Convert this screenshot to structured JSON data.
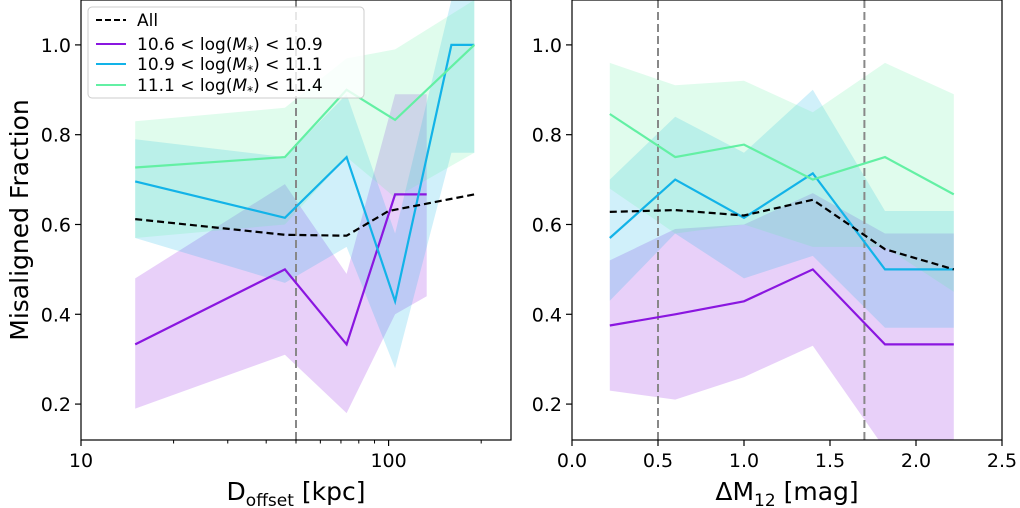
{
  "colors": {
    "all": "#000000",
    "purple": "#8a16e0",
    "blue": "#12b3e8",
    "green": "#63f0a4",
    "vline": "#888888"
  },
  "legend": {
    "location": "top-left of left panel",
    "entries": [
      {
        "label": "All",
        "style": "dashed",
        "color": "#000000"
      },
      {
        "label": "10.6 < log(M*) < 10.9",
        "style": "solid",
        "color": "#8a16e0"
      },
      {
        "label": "10.9 < log(M*) < 11.1",
        "style": "solid",
        "color": "#12b3e8"
      },
      {
        "label": "11.1 < log(M*) < 11.4",
        "style": "solid",
        "color": "#63f0a4"
      }
    ]
  },
  "chart_data": [
    {
      "type": "line",
      "panel": "left",
      "xscale": "log",
      "xlim": [
        10,
        250
      ],
      "ylim": [
        0.12,
        1.1
      ],
      "xlabel": "D_offset [kpc]",
      "ylabel": "Misaligned Fraction",
      "xticks": [
        10,
        100
      ],
      "xtick_labels": [
        "10",
        "100"
      ],
      "yticks": [
        0.2,
        0.4,
        0.6,
        0.8,
        1.0
      ],
      "ytick_labels": [
        "0.2",
        "0.4",
        "0.6",
        "0.8",
        "1.0"
      ],
      "vlines": [
        50
      ],
      "series": [
        {
          "name": "10.6 < log(M*) < 10.9",
          "color": "#8a16e0",
          "dash": false,
          "x": [
            15,
            46,
            73,
            105,
            133
          ],
          "y": [
            0.333,
            0.5,
            0.333,
            0.667,
            0.667
          ],
          "band_low": [
            0.19,
            0.31,
            0.18,
            0.4,
            0.44
          ],
          "band_high": [
            0.48,
            0.69,
            0.49,
            0.89,
            0.89
          ]
        },
        {
          "name": "10.9 < log(M*) < 11.1",
          "color": "#12b3e8",
          "dash": false,
          "x": [
            15,
            46,
            73,
            105,
            160,
            190
          ],
          "y": [
            0.696,
            0.615,
            0.75,
            0.429,
            1.0,
            1.0
          ],
          "band_low": [
            0.57,
            0.47,
            0.55,
            0.28,
            0.76,
            0.76
          ],
          "band_high": [
            0.79,
            0.75,
            0.89,
            0.58,
            1.1,
            1.1
          ]
        },
        {
          "name": "11.1 < log(M*) < 11.4",
          "color": "#63f0a4",
          "dash": false,
          "x": [
            15,
            46,
            73,
            105,
            190
          ],
          "y": [
            0.727,
            0.75,
            0.9,
            0.833,
            1.0
          ],
          "band_low": [
            0.57,
            0.6,
            0.75,
            0.66,
            0.76
          ],
          "band_high": [
            0.83,
            0.86,
            0.97,
            0.99,
            1.1
          ]
        },
        {
          "name": "All",
          "color": "#000000",
          "dash": true,
          "x": [
            15,
            46,
            73,
            100,
            190
          ],
          "y": [
            0.612,
            0.577,
            0.575,
            0.63,
            0.667
          ]
        }
      ]
    },
    {
      "type": "line",
      "panel": "right",
      "xscale": "linear",
      "xlim": [
        0.0,
        2.5
      ],
      "ylim": [
        0.12,
        1.1
      ],
      "xlabel": "ΔM_12 [mag]",
      "ylabel": "",
      "xticks": [
        0.0,
        0.5,
        1.0,
        1.5,
        2.0,
        2.5
      ],
      "xtick_labels": [
        "0.0",
        "0.5",
        "1.0",
        "1.5",
        "2.0",
        "2.5"
      ],
      "yticks": [
        0.2,
        0.4,
        0.6,
        0.8,
        1.0
      ],
      "ytick_labels": [
        "0.2",
        "0.4",
        "0.6",
        "0.8",
        "1.0"
      ],
      "vlines": [
        0.5,
        1.7
      ],
      "series": [
        {
          "name": "10.6 < log(M*) < 10.9",
          "color": "#8a16e0",
          "dash": false,
          "x": [
            0.22,
            0.6,
            1.0,
            1.4,
            1.82,
            2.22
          ],
          "y": [
            0.375,
            0.4,
            0.429,
            0.5,
            0.333,
            0.333
          ],
          "band_low": [
            0.23,
            0.21,
            0.26,
            0.33,
            0.1,
            0.1
          ],
          "band_high": [
            0.52,
            0.59,
            0.6,
            0.67,
            0.58,
            0.58
          ]
        },
        {
          "name": "10.9 < log(M*) < 11.1",
          "color": "#12b3e8",
          "dash": false,
          "x": [
            0.22,
            0.6,
            1.0,
            1.4,
            1.82,
            2.22
          ],
          "y": [
            0.57,
            0.7,
            0.615,
            0.714,
            0.5,
            0.5
          ],
          "band_low": [
            0.43,
            0.58,
            0.48,
            0.53,
            0.37,
            0.37
          ],
          "band_high": [
            0.7,
            0.84,
            0.76,
            0.9,
            0.63,
            0.63
          ]
        },
        {
          "name": "11.1 < log(M*) < 11.4",
          "color": "#63f0a4",
          "dash": false,
          "x": [
            0.22,
            0.6,
            1.0,
            1.4,
            1.82,
            2.22
          ],
          "y": [
            0.846,
            0.75,
            0.778,
            0.7,
            0.75,
            0.667
          ],
          "band_low": [
            0.68,
            0.58,
            0.6,
            0.55,
            0.55,
            0.45
          ],
          "band_high": [
            0.96,
            0.91,
            0.92,
            0.85,
            0.96,
            0.89
          ]
        },
        {
          "name": "All",
          "color": "#000000",
          "dash": true,
          "x": [
            0.22,
            0.6,
            1.0,
            1.4,
            1.82,
            2.22
          ],
          "y": [
            0.628,
            0.632,
            0.62,
            0.655,
            0.545,
            0.5
          ]
        }
      ]
    }
  ]
}
